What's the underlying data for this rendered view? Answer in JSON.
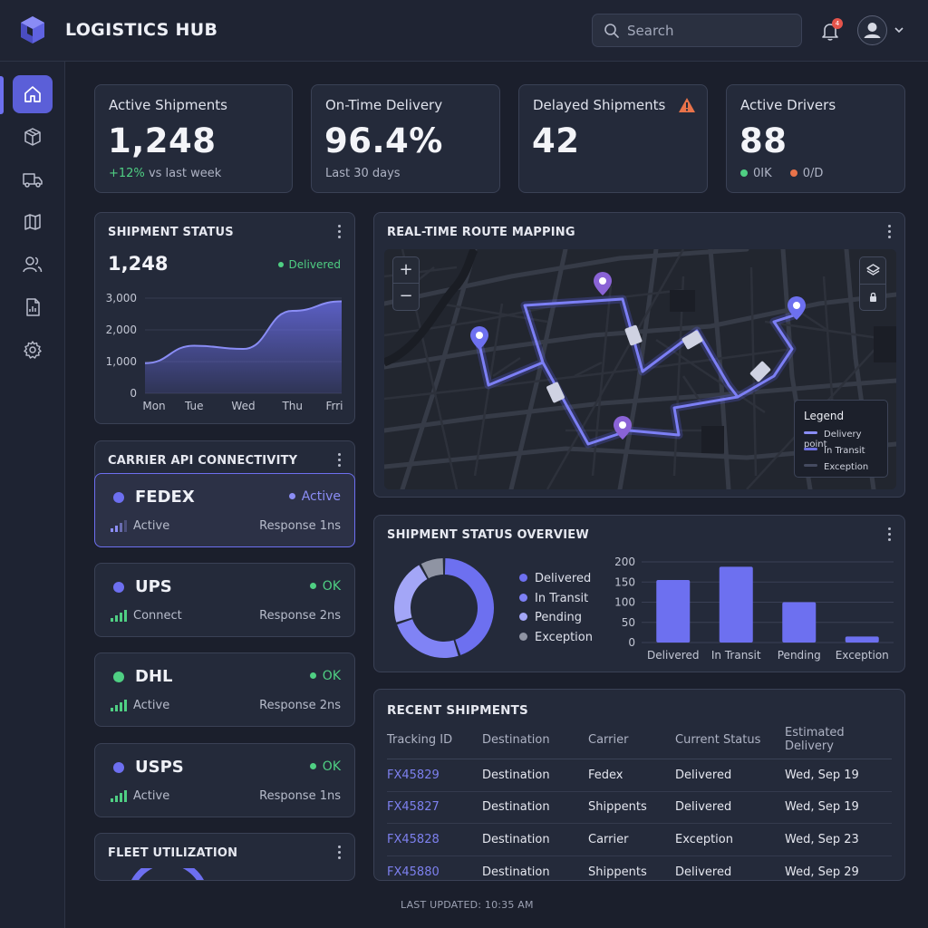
{
  "app": {
    "title": "LOGISTICS HUB"
  },
  "search": {
    "placeholder": "Search"
  },
  "notifications": {
    "count": "4"
  },
  "sidebar": {
    "items": [
      {
        "name": "home",
        "active": true
      },
      {
        "name": "shipments"
      },
      {
        "name": "fleet"
      },
      {
        "name": "routes"
      },
      {
        "name": "drivers"
      },
      {
        "name": "reports"
      },
      {
        "name": "settings"
      }
    ]
  },
  "kpis": {
    "active_shipments": {
      "label": "Active Shipments",
      "value": "1,248",
      "change": "+12%",
      "change_suffix": "vs last week"
    },
    "on_time": {
      "label": "On-Time Delivery",
      "value": "96.4%",
      "sub": "Last 30 days"
    },
    "delayed": {
      "label": "Delayed Shipments",
      "value": "42"
    },
    "drivers": {
      "label": "Active Drivers",
      "value": "88",
      "ok": "0IK",
      "od": "0/D"
    }
  },
  "shipment_status": {
    "title": "SHIPMENT STATUS",
    "total": "1,248",
    "status": "Delivered",
    "y_ticks": [
      "3,000",
      "2,000",
      "1,000",
      "0"
    ],
    "x_ticks": [
      "Mon",
      "Tue",
      "Wed",
      "Thu",
      "Frri"
    ]
  },
  "carriers": {
    "title": "CARRIER API CONNECTIVITY",
    "items": [
      {
        "name": "FEDEX",
        "status": "Active",
        "conn": "Active",
        "response": "Response 1ns",
        "dot": "#6d6ff0",
        "status_color": "#8b8df5"
      },
      {
        "name": "UPS",
        "status": "OK",
        "conn": "Connect",
        "response": "Response 2ns",
        "dot": "#6d6ff0",
        "status_color": "#4fcf83"
      },
      {
        "name": "DHL",
        "status": "OK",
        "conn": "Active",
        "response": "Response 2ns",
        "dot": "#4fcf83",
        "status_color": "#4fcf83"
      },
      {
        "name": "USPS",
        "status": "OK",
        "conn": "Active",
        "response": "Response 1ns",
        "dot": "#6d6ff0",
        "status_color": "#4fcf83"
      }
    ]
  },
  "fleet": {
    "title": "FLEET UTILIZATION"
  },
  "map": {
    "title": "REAL-TIME ROUTE MAPPING",
    "legend_title": "Legend",
    "legend": [
      "Delivery point",
      "In Transit",
      "Exception"
    ]
  },
  "overview": {
    "title": "SHIPMENT STATUS OVERVIEW",
    "legend": [
      "Delivered",
      "In Transit",
      "Pending",
      "Exception"
    ]
  },
  "recent": {
    "title": "RECENT SHIPMENTS",
    "columns": [
      "Tracking ID",
      "Destination",
      "Carrier",
      "Current Status",
      "Estimated Delivery"
    ],
    "rows": [
      [
        "FX45829",
        "Destination",
        "Fedex",
        "Delivered",
        "Wed, Sep 19"
      ],
      [
        "FX45827",
        "Destination",
        "Shippents",
        "Delivered",
        "Wed, Sep 19"
      ],
      [
        "FX45828",
        "Destination",
        "Carrier",
        "Exception",
        "Wed, Sep 23"
      ],
      [
        "FX45880",
        "Destination",
        "Shippents",
        "Delivered",
        "Wed, Sep 29"
      ]
    ]
  },
  "footer": {
    "last_updated": "LAST UPDATED: 10:35 AM"
  },
  "colors": {
    "accent": "#6d6ff0",
    "success": "#4fcf83",
    "danger": "#e5544b",
    "warning": "#e9734a"
  },
  "chart_data": [
    {
      "type": "area",
      "title": "SHIPMENT STATUS",
      "categories": [
        "Mon",
        "Tue",
        "Wed",
        "Thu",
        "Frri"
      ],
      "values": [
        950,
        1500,
        1400,
        2600,
        2900
      ],
      "ylim": [
        0,
        3000
      ]
    },
    {
      "type": "pie",
      "categories": [
        "Delivered",
        "In Transit",
        "Pending",
        "Exception"
      ],
      "values": [
        45,
        25,
        22,
        8
      ]
    },
    {
      "type": "bar",
      "categories": [
        "Delivered",
        "In Transit",
        "Pending",
        "Exception"
      ],
      "values": [
        155,
        188,
        100,
        15
      ],
      "ylim": [
        0,
        200
      ],
      "y_ticks": [
        "200",
        "150",
        "100",
        "50",
        "0"
      ]
    }
  ]
}
